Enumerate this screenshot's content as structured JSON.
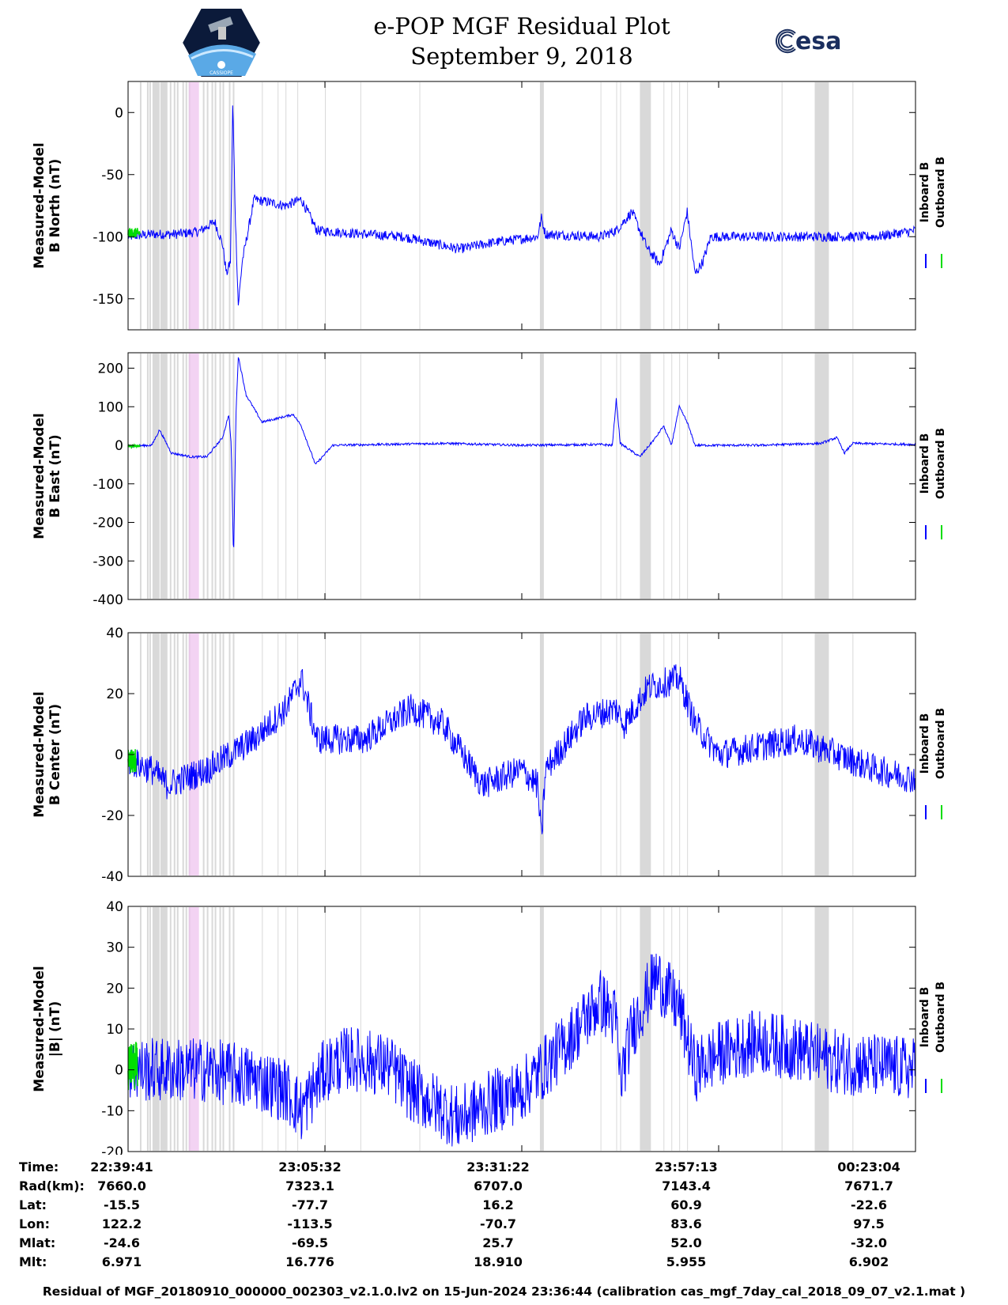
{
  "header": {
    "title_line1": "e-POP MGF Residual Plot",
    "title_line2": "September 9, 2018",
    "left_logo_text": "CASSIOPE",
    "right_logo_text": "esa"
  },
  "colors": {
    "inboard": "#0000ff",
    "outboard": "#00dd00",
    "shade_gray": "#d9d9d9",
    "shade_pink": "#eec0ee"
  },
  "chart_data": [
    {
      "type": "line",
      "id": "north",
      "ylabel": [
        "Measured-Model",
        "B North (nT)"
      ],
      "ylim": [
        -175,
        25
      ],
      "yticks": [
        0,
        -50,
        -100,
        -150
      ],
      "legend": [
        "Inboard B",
        "Outboard B"
      ],
      "legend_placement": "right",
      "noise": 4,
      "outboard": {
        "t": [
          0,
          0.015
        ],
        "value": -97,
        "noise": 4
      },
      "knots": [
        [
          0,
          -100
        ],
        [
          0.03,
          -98
        ],
        [
          0.06,
          -98
        ],
        [
          0.09,
          -96
        ],
        [
          0.1,
          -92
        ],
        [
          0.11,
          -88
        ],
        [
          0.12,
          -106
        ],
        [
          0.125,
          -130
        ],
        [
          0.13,
          -120
        ],
        [
          0.133,
          10
        ],
        [
          0.136,
          -80
        ],
        [
          0.14,
          -155
        ],
        [
          0.145,
          -120
        ],
        [
          0.16,
          -70
        ],
        [
          0.2,
          -75
        ],
        [
          0.22,
          -70
        ],
        [
          0.24,
          -95
        ],
        [
          0.3,
          -98
        ],
        [
          0.35,
          -100
        ],
        [
          0.42,
          -110
        ],
        [
          0.46,
          -105
        ],
        [
          0.52,
          -100
        ],
        [
          0.525,
          -85
        ],
        [
          0.53,
          -98
        ],
        [
          0.6,
          -100
        ],
        [
          0.62,
          -95
        ],
        [
          0.64,
          -80
        ],
        [
          0.66,
          -110
        ],
        [
          0.675,
          -122
        ],
        [
          0.69,
          -95
        ],
        [
          0.7,
          -110
        ],
        [
          0.71,
          -80
        ],
        [
          0.72,
          -130
        ],
        [
          0.73,
          -120
        ],
        [
          0.74,
          -100
        ],
        [
          0.85,
          -100
        ],
        [
          0.95,
          -100
        ],
        [
          1,
          -95
        ]
      ]
    },
    {
      "type": "line",
      "id": "east",
      "ylabel": [
        "Measured-Model",
        "B East (nT)"
      ],
      "ylim": [
        -400,
        240
      ],
      "yticks": [
        200,
        100,
        0,
        -100,
        -200,
        -300,
        -400
      ],
      "legend": [
        "Inboard B",
        "Outboard B"
      ],
      "legend_placement": "right",
      "noise": 3,
      "outboard": {
        "t": [
          0,
          0.015
        ],
        "value": -2,
        "noise": 3
      },
      "knots": [
        [
          0,
          -2
        ],
        [
          0.03,
          0
        ],
        [
          0.04,
          40
        ],
        [
          0.055,
          -20
        ],
        [
          0.08,
          -30
        ],
        [
          0.1,
          -30
        ],
        [
          0.12,
          20
        ],
        [
          0.128,
          80
        ],
        [
          0.131,
          0
        ],
        [
          0.134,
          -300
        ],
        [
          0.137,
          80
        ],
        [
          0.14,
          230
        ],
        [
          0.15,
          130
        ],
        [
          0.17,
          60
        ],
        [
          0.21,
          80
        ],
        [
          0.22,
          50
        ],
        [
          0.238,
          -50
        ],
        [
          0.26,
          0
        ],
        [
          0.4,
          5
        ],
        [
          0.5,
          0
        ],
        [
          0.6,
          2
        ],
        [
          0.615,
          0
        ],
        [
          0.62,
          120
        ],
        [
          0.625,
          5
        ],
        [
          0.65,
          -30
        ],
        [
          0.67,
          20
        ],
        [
          0.68,
          50
        ],
        [
          0.69,
          0
        ],
        [
          0.7,
          100
        ],
        [
          0.71,
          60
        ],
        [
          0.72,
          0
        ],
        [
          0.8,
          0
        ],
        [
          0.88,
          5
        ],
        [
          0.9,
          20
        ],
        [
          0.91,
          -20
        ],
        [
          0.92,
          5
        ],
        [
          1,
          2
        ]
      ]
    },
    {
      "type": "line",
      "id": "center",
      "ylabel": [
        "Measured-Model",
        "B Center (nT)"
      ],
      "ylim": [
        -40,
        40
      ],
      "yticks": [
        40,
        20,
        0,
        -20,
        -40
      ],
      "legend": [
        "Inboard B",
        "Outboard B"
      ],
      "legend_placement": "right",
      "noise": 5,
      "outboard": {
        "t": [
          0,
          0.01
        ],
        "value": -2,
        "noise": 4
      },
      "knots": [
        [
          0,
          -2
        ],
        [
          0.03,
          -5
        ],
        [
          0.05,
          -10
        ],
        [
          0.1,
          -5
        ],
        [
          0.13,
          0
        ],
        [
          0.16,
          5
        ],
        [
          0.2,
          15
        ],
        [
          0.22,
          25
        ],
        [
          0.24,
          5
        ],
        [
          0.3,
          5
        ],
        [
          0.36,
          15
        ],
        [
          0.4,
          10
        ],
        [
          0.45,
          -10
        ],
        [
          0.5,
          -5
        ],
        [
          0.52,
          -10
        ],
        [
          0.525,
          -28
        ],
        [
          0.53,
          -5
        ],
        [
          0.58,
          12
        ],
        [
          0.62,
          15
        ],
        [
          0.63,
          10
        ],
        [
          0.66,
          22
        ],
        [
          0.7,
          25
        ],
        [
          0.72,
          10
        ],
        [
          0.75,
          0
        ],
        [
          0.85,
          5
        ],
        [
          0.95,
          -5
        ],
        [
          1,
          -8
        ]
      ]
    },
    {
      "type": "line",
      "id": "magnitude",
      "ylabel": [
        "Measured-Model",
        "|B| (nT)"
      ],
      "ylim": [
        -20,
        40
      ],
      "yticks": [
        40,
        30,
        20,
        10,
        0,
        -10,
        -20
      ],
      "legend": [
        "Inboard B",
        "Outboard B"
      ],
      "legend_placement": "right",
      "noise": 8,
      "outboard": {
        "t": [
          0,
          0.012
        ],
        "value": 1,
        "noise": 6
      },
      "knots": [
        [
          0,
          0
        ],
        [
          0.1,
          0
        ],
        [
          0.16,
          -2
        ],
        [
          0.2,
          -5
        ],
        [
          0.22,
          -10
        ],
        [
          0.25,
          0
        ],
        [
          0.28,
          3
        ],
        [
          0.33,
          1
        ],
        [
          0.36,
          -5
        ],
        [
          0.42,
          -12
        ],
        [
          0.46,
          -8
        ],
        [
          0.5,
          -5
        ],
        [
          0.55,
          5
        ],
        [
          0.6,
          17
        ],
        [
          0.62,
          12
        ],
        [
          0.625,
          -3
        ],
        [
          0.64,
          10
        ],
        [
          0.67,
          23
        ],
        [
          0.7,
          15
        ],
        [
          0.72,
          0
        ],
        [
          0.75,
          4
        ],
        [
          0.8,
          7
        ],
        [
          0.85,
          5
        ],
        [
          0.9,
          2
        ],
        [
          1,
          0
        ]
      ]
    }
  ],
  "shading": {
    "gray_bands": [
      [
        0.015,
        0.017
      ],
      [
        0.024,
        0.026
      ],
      [
        0.027,
        0.029
      ],
      [
        0.031,
        0.04
      ],
      [
        0.041,
        0.05
      ],
      [
        0.053,
        0.055
      ],
      [
        0.058,
        0.06
      ],
      [
        0.062,
        0.064
      ],
      [
        0.069,
        0.071
      ],
      [
        0.073,
        0.075
      ],
      [
        0.077,
        0.079
      ],
      [
        0.095,
        0.097
      ],
      [
        0.1,
        0.102
      ],
      [
        0.106,
        0.108
      ],
      [
        0.11,
        0.112
      ],
      [
        0.116,
        0.118
      ],
      [
        0.12,
        0.122
      ],
      [
        0.128,
        0.13
      ],
      [
        0.133,
        0.135
      ],
      [
        0.17,
        0.171
      ],
      [
        0.19,
        0.191
      ],
      [
        0.2,
        0.201
      ],
      [
        0.215,
        0.216
      ],
      [
        0.25,
        0.251
      ],
      [
        0.295,
        0.296
      ],
      [
        0.37,
        0.371
      ],
      [
        0.523,
        0.528
      ],
      [
        0.6,
        0.601
      ],
      [
        0.62,
        0.621
      ],
      [
        0.625,
        0.626
      ],
      [
        0.65,
        0.664
      ],
      [
        0.68,
        0.681
      ],
      [
        0.69,
        0.691
      ],
      [
        0.7,
        0.701
      ],
      [
        0.71,
        0.711
      ],
      [
        0.83,
        0.831
      ],
      [
        0.872,
        0.89
      ],
      [
        0.92,
        0.921
      ]
    ],
    "pink_bands": [
      [
        0.077,
        0.09
      ]
    ]
  },
  "time_axis": {
    "labels": [
      "22:39:41",
      "23:05:32",
      "23:31:22",
      "23:57:13",
      "00:23:04"
    ],
    "positions": [
      0,
      0.25,
      0.5,
      0.75,
      1
    ]
  },
  "info_table": {
    "rows": [
      {
        "label": "Time:",
        "values": [
          "22:39:41",
          "23:05:32",
          "23:31:22",
          "23:57:13",
          "00:23:04"
        ]
      },
      {
        "label": "Rad(km):",
        "values": [
          "7660.0",
          "7323.1",
          "6707.0",
          "7143.4",
          "7671.7"
        ]
      },
      {
        "label": "Lat:",
        "values": [
          "-15.5",
          "-77.7",
          "16.2",
          "60.9",
          "-22.6"
        ]
      },
      {
        "label": "Lon:",
        "values": [
          "122.2",
          "-113.5",
          "-70.7",
          "83.6",
          "97.5"
        ]
      },
      {
        "label": "Mlat:",
        "values": [
          "-24.6",
          "-69.5",
          "25.7",
          "52.0",
          "-32.0"
        ]
      },
      {
        "label": "Mlt:",
        "values": [
          "6.971",
          "16.776",
          "18.910",
          "5.955",
          "6.902"
        ]
      }
    ]
  },
  "footer": "Residual of MGF_20180910_000000_002303_v2.1.0.lv2 on 15-Jun-2024 23:36:44 (calibration cas_mgf_7day_cal_2018_09_07_v2.1.mat )"
}
